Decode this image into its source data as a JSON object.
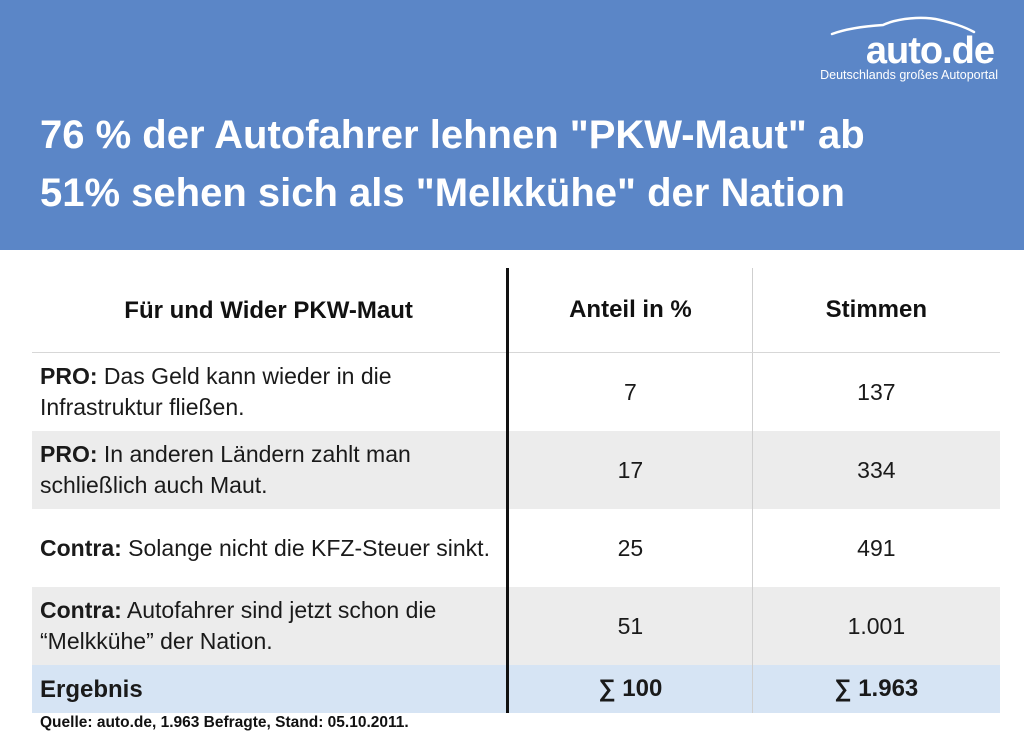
{
  "brand": {
    "logo_text": "auto.de",
    "tagline": "Deutschlands großes Autoportal"
  },
  "headline": {
    "line1": "76 % der Autofahrer lehnen \"PKW-Maut\" ab",
    "line2": "51% sehen sich als \"Melkkühe\" der Nation"
  },
  "chart_data": {
    "type": "table",
    "columns": [
      "Für und Wider PKW-Maut",
      "Anteil in %",
      "Stimmen"
    ],
    "rows": [
      {
        "lead": "PRO:",
        "text": " Das Geld kann wieder in die Infrastruktur fließen.",
        "anteil": "7",
        "stimmen": "137"
      },
      {
        "lead": "PRO:",
        "text": " In anderen Ländern zahlt man schließlich auch Maut.",
        "anteil": "17",
        "stimmen": "334"
      },
      {
        "lead": "Contra:",
        "text": " Solange nicht die KFZ-Steuer sinkt.",
        "anteil": "25",
        "stimmen": "491"
      },
      {
        "lead": "Contra:",
        "text": " Autofahrer sind jetzt schon die “Melkkühe” der Nation.",
        "anteil": "51",
        "stimmen": "1.001"
      }
    ],
    "total": {
      "label": "Ergebnis",
      "anteil": "∑ 100",
      "stimmen": "∑ 1.963"
    },
    "source": "Quelle: auto.de, 1.963 Befragte, Stand: 05.10.2011."
  },
  "colors": {
    "header_bg": "#5b86c7",
    "alt_row_bg": "#ececec",
    "total_row_bg": "#d6e4f4"
  }
}
